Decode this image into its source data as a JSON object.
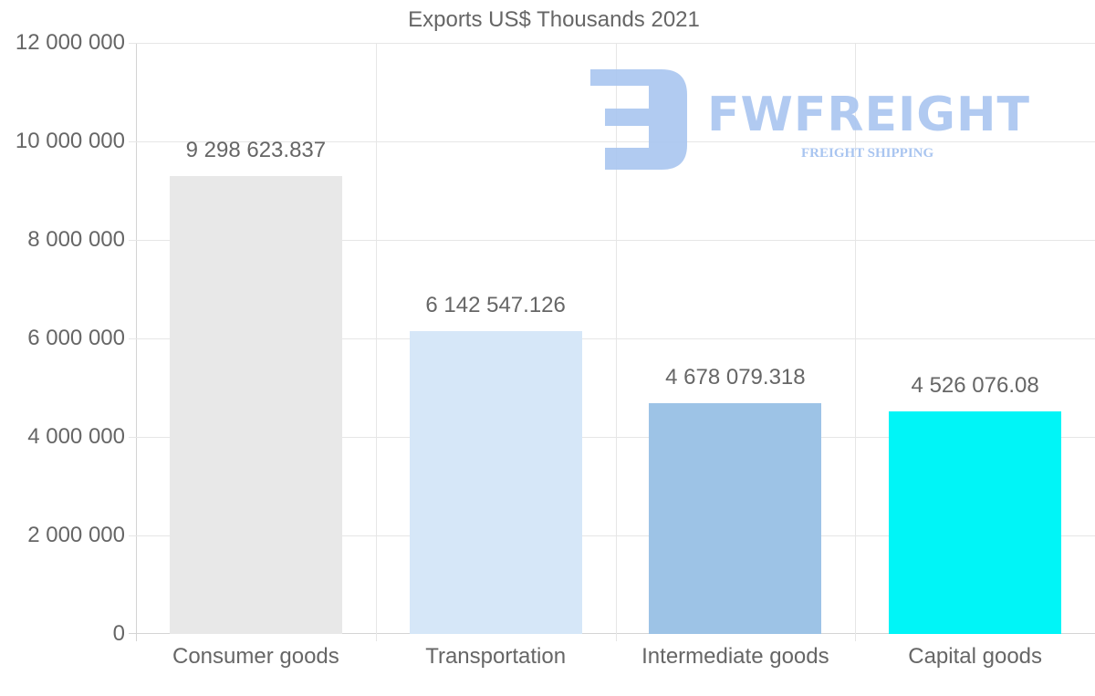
{
  "chart_data": {
    "type": "bar",
    "title": "Exports US$ Thousands 2021",
    "xlabel": "",
    "ylabel": "",
    "categories": [
      "Consumer goods",
      "Transportation",
      "Intermediate goods",
      "Capital goods"
    ],
    "values": [
      9298623.837,
      6142547.126,
      4678079.318,
      4526076.08
    ],
    "value_labels": [
      "9 298 623.837",
      "6 142 547.126",
      "4 678 079.318",
      "4 526 076.08"
    ],
    "colors": [
      "#e8e8e8",
      "#d6e7f8",
      "#9dc3e6",
      "#00f5f7"
    ],
    "ylim": [
      0,
      12000000
    ],
    "yticks": [
      0,
      2000000,
      4000000,
      6000000,
      8000000,
      10000000,
      12000000
    ],
    "ytick_labels": [
      "0",
      "2 000 000",
      "4 000 000",
      "6 000 000",
      "8 000 000",
      "10 000 000",
      "12 000 000"
    ],
    "grid": true,
    "legend": "none"
  },
  "watermark": {
    "brand": "FWFREIGHT",
    "tagline": "FREIGHT SHIPPING",
    "color": "#a9c5f0"
  }
}
